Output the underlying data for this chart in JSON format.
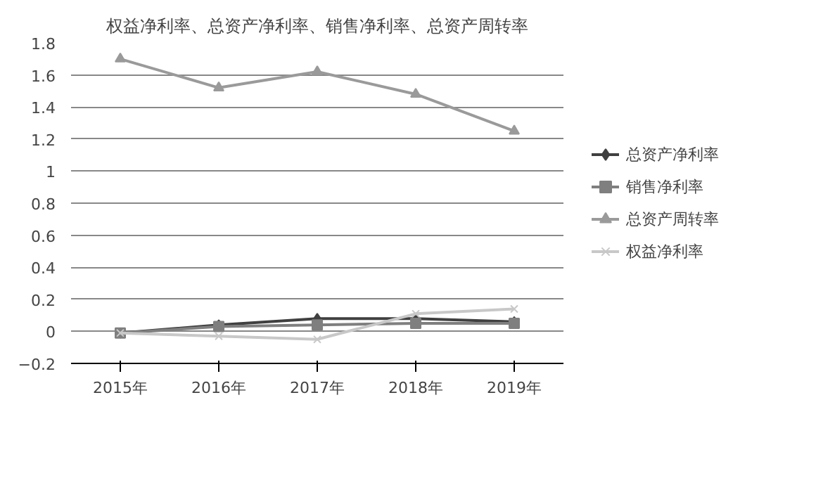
{
  "chart_data": {
    "type": "line",
    "title": "权益净利率、总资产净利率、销售净利率、总资产周转率",
    "categories": [
      "2015年",
      "2016年",
      "2017年",
      "2018年",
      "2019年"
    ],
    "series": [
      {
        "name": "总资产净利率",
        "color": "#404040",
        "marker": "diamond",
        "values": [
          -0.01,
          0.04,
          0.08,
          0.08,
          0.06
        ]
      },
      {
        "name": "销售净利率",
        "color": "#7f7f7f",
        "marker": "square",
        "values": [
          -0.01,
          0.03,
          0.04,
          0.05,
          0.05
        ]
      },
      {
        "name": "总资产周转率",
        "color": "#9a9a9a",
        "marker": "triangle",
        "values": [
          1.7,
          1.52,
          1.62,
          1.48,
          1.25
        ]
      },
      {
        "name": "权益净利率",
        "color": "#c8c8c8",
        "marker": "cross",
        "values": [
          -0.01,
          -0.03,
          -0.05,
          0.11,
          0.14
        ]
      }
    ],
    "ylim": [
      -0.2,
      1.8
    ],
    "yticks": [
      -0.2,
      0,
      0.2,
      0.4,
      0.6,
      0.8,
      1,
      1.2,
      1.4,
      1.6,
      1.8
    ],
    "grid": "y",
    "legend": "right"
  }
}
